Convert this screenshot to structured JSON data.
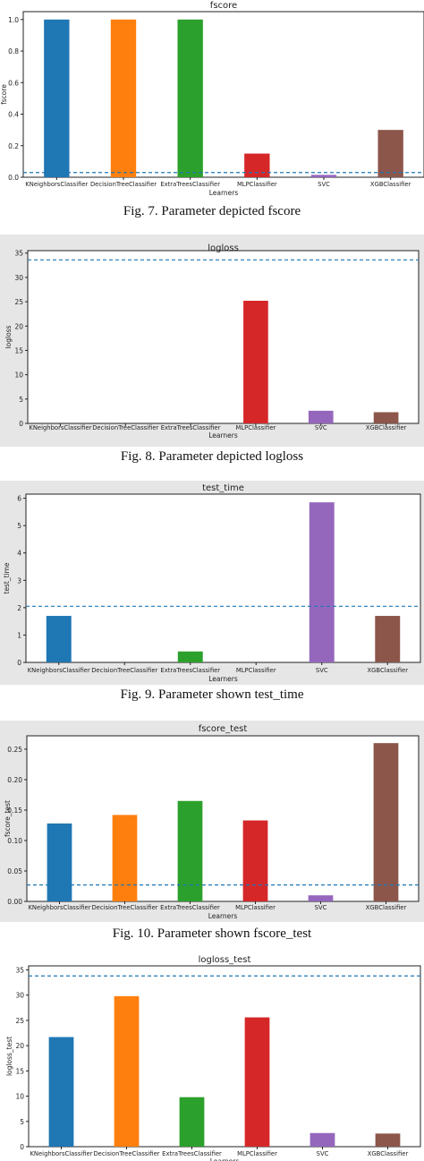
{
  "figures": [
    {
      "caption": "Fig. 7.   Parameter depicted fscore"
    },
    {
      "caption": "Fig. 8.   Parameter depicted logloss"
    },
    {
      "caption": "Fig. 9.   Parameter shown test_time"
    },
    {
      "caption": "Fig. 10. Parameter shown fscore_test"
    }
  ],
  "chart_data": [
    {
      "type": "bar",
      "title": "fscore",
      "xlabel": "Learners",
      "ylabel": "fscore",
      "categories": [
        "KNeighborsClassifier",
        "DecisionTreeClassifier",
        "ExtraTreesClassifier",
        "MLPClassifier",
        "SVC",
        "XGBClassifier"
      ],
      "values": [
        1.0,
        1.0,
        1.0,
        0.15,
        0.015,
        0.3
      ],
      "ylim": [
        0,
        1.05
      ],
      "yticks": [
        "0.0",
        "0.2",
        "0.4",
        "0.6",
        "0.8",
        "1.0"
      ],
      "reference_line": 0.03,
      "colors": [
        "#1f77b4",
        "#ff7f0e",
        "#2ca02c",
        "#d62728",
        "#9467bd",
        "#8c564b"
      ],
      "line_color": "#1f77b4",
      "grid": false
    },
    {
      "type": "bar",
      "title": "logloss",
      "xlabel": "Learners",
      "ylabel": "logloss",
      "categories": [
        "KNeighborsClassifier",
        "DecisionTreeClassifier",
        "ExtraTreesClassifier",
        "MLPClassifier",
        "SVC",
        "XGBClassifier"
      ],
      "values": [
        0.0,
        0.0,
        0.0,
        25.2,
        2.6,
        2.3
      ],
      "ylim": [
        0,
        35.5
      ],
      "yticks": [
        "0",
        "5",
        "10",
        "15",
        "20",
        "25",
        "30",
        "35"
      ],
      "reference_line": 33.6,
      "colors": [
        "#1f77b4",
        "#ff7f0e",
        "#2ca02c",
        "#d62728",
        "#9467bd",
        "#8c564b"
      ],
      "line_color": "#1f77b4",
      "grid": false
    },
    {
      "type": "bar",
      "title": "test_time",
      "xlabel": "Learners",
      "ylabel": "test_time",
      "categories": [
        "KNeighborsClassifier",
        "DecisionTreeClassifier",
        "ExtraTreesClassifier",
        "MLPClassifier",
        "SVC",
        "XGBClassifier"
      ],
      "values": [
        1.7,
        0.0,
        0.4,
        0.0,
        5.85,
        1.7
      ],
      "ylim": [
        0,
        6.15
      ],
      "yticks": [
        "0",
        "1",
        "2",
        "3",
        "4",
        "5",
        "6"
      ],
      "reference_line": 2.05,
      "colors": [
        "#1f77b4",
        "#ff7f0e",
        "#2ca02c",
        "#d62728",
        "#9467bd",
        "#8c564b"
      ],
      "line_color": "#1f77b4",
      "grid": false
    },
    {
      "type": "bar",
      "title": "fscore_test",
      "xlabel": "Learners",
      "ylabel": "fscore_test",
      "categories": [
        "KNeighborsClassifier",
        "DecisionTreeClassifier",
        "ExtraTreesClassifier",
        "MLPClassifier",
        "SVC",
        "XGBClassifier"
      ],
      "values": [
        0.128,
        0.142,
        0.165,
        0.133,
        0.01,
        0.26
      ],
      "ylim": [
        0,
        0.272
      ],
      "yticks": [
        "0.00",
        "0.05",
        "0.10",
        "0.15",
        "0.20",
        "0.25"
      ],
      "reference_line": 0.027,
      "colors": [
        "#1f77b4",
        "#ff7f0e",
        "#2ca02c",
        "#d62728",
        "#9467bd",
        "#8c564b"
      ],
      "line_color": "#1f77b4",
      "grid": false
    },
    {
      "type": "bar",
      "title": "logloss_test",
      "xlabel": "Learners",
      "ylabel": "logloss_test",
      "categories": [
        "KNeighborsClassifier",
        "DecisionTreeClassifier",
        "ExtraTreesClassifier",
        "MLPClassifier",
        "SVC",
        "XGBClassifier"
      ],
      "values": [
        21.7,
        29.8,
        9.8,
        25.6,
        2.7,
        2.6
      ],
      "ylim": [
        0,
        35.8
      ],
      "yticks": [
        "0",
        "5",
        "10",
        "15",
        "20",
        "25",
        "30",
        "35"
      ],
      "reference_line": 33.8,
      "colors": [
        "#1f77b4",
        "#ff7f0e",
        "#2ca02c",
        "#d62728",
        "#9467bd",
        "#8c564b"
      ],
      "line_color": "#1f77b4",
      "grid": false
    }
  ]
}
